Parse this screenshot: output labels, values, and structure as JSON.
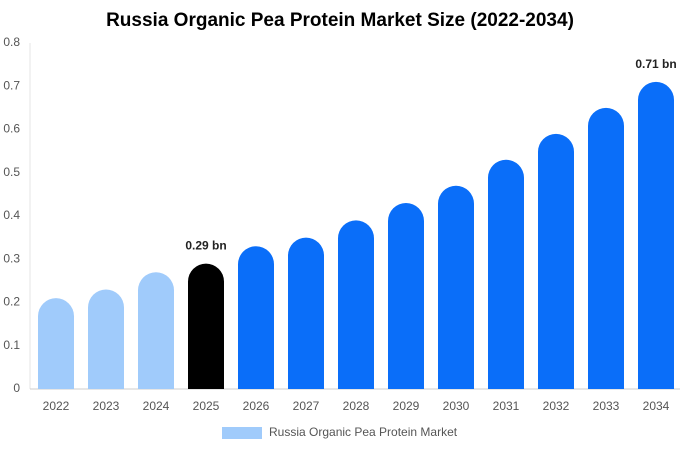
{
  "chart_data": {
    "type": "bar",
    "title": "Russia Organic Pea Protein Market Size (2022-2034)",
    "categories": [
      "2022",
      "2023",
      "2024",
      "2025",
      "2026",
      "2027",
      "2028",
      "2029",
      "2030",
      "2031",
      "2032",
      "2033",
      "2034"
    ],
    "series": [
      {
        "name": "Russia Organic Pea Protein Market",
        "color": "#a0cbfb",
        "values": [
          0.21,
          0.23,
          0.27,
          0.29,
          0.33,
          0.35,
          0.39,
          0.43,
          0.47,
          0.53,
          0.59,
          0.65,
          0.71
        ],
        "value_labels": [
          null,
          null,
          null,
          "0.29 bn",
          null,
          null,
          null,
          null,
          null,
          null,
          null,
          null,
          "0.71 bn"
        ],
        "colors": [
          "#a0cbfb",
          "#a0cbfb",
          "#a0cbfb",
          "#000000",
          "#0a6ef9",
          "#0a6ef9",
          "#0a6ef9",
          "#0a6ef9",
          "#0a6ef9",
          "#0a6ef9",
          "#0a6ef9",
          "#0a6ef9",
          "#0a6ef9"
        ]
      }
    ],
    "ylim": [
      0,
      0.8
    ],
    "yticks": [
      0,
      0.1,
      0.2,
      0.3,
      0.4,
      0.5,
      0.6,
      0.7,
      0.8
    ],
    "grid": false,
    "legend": "bottom"
  }
}
